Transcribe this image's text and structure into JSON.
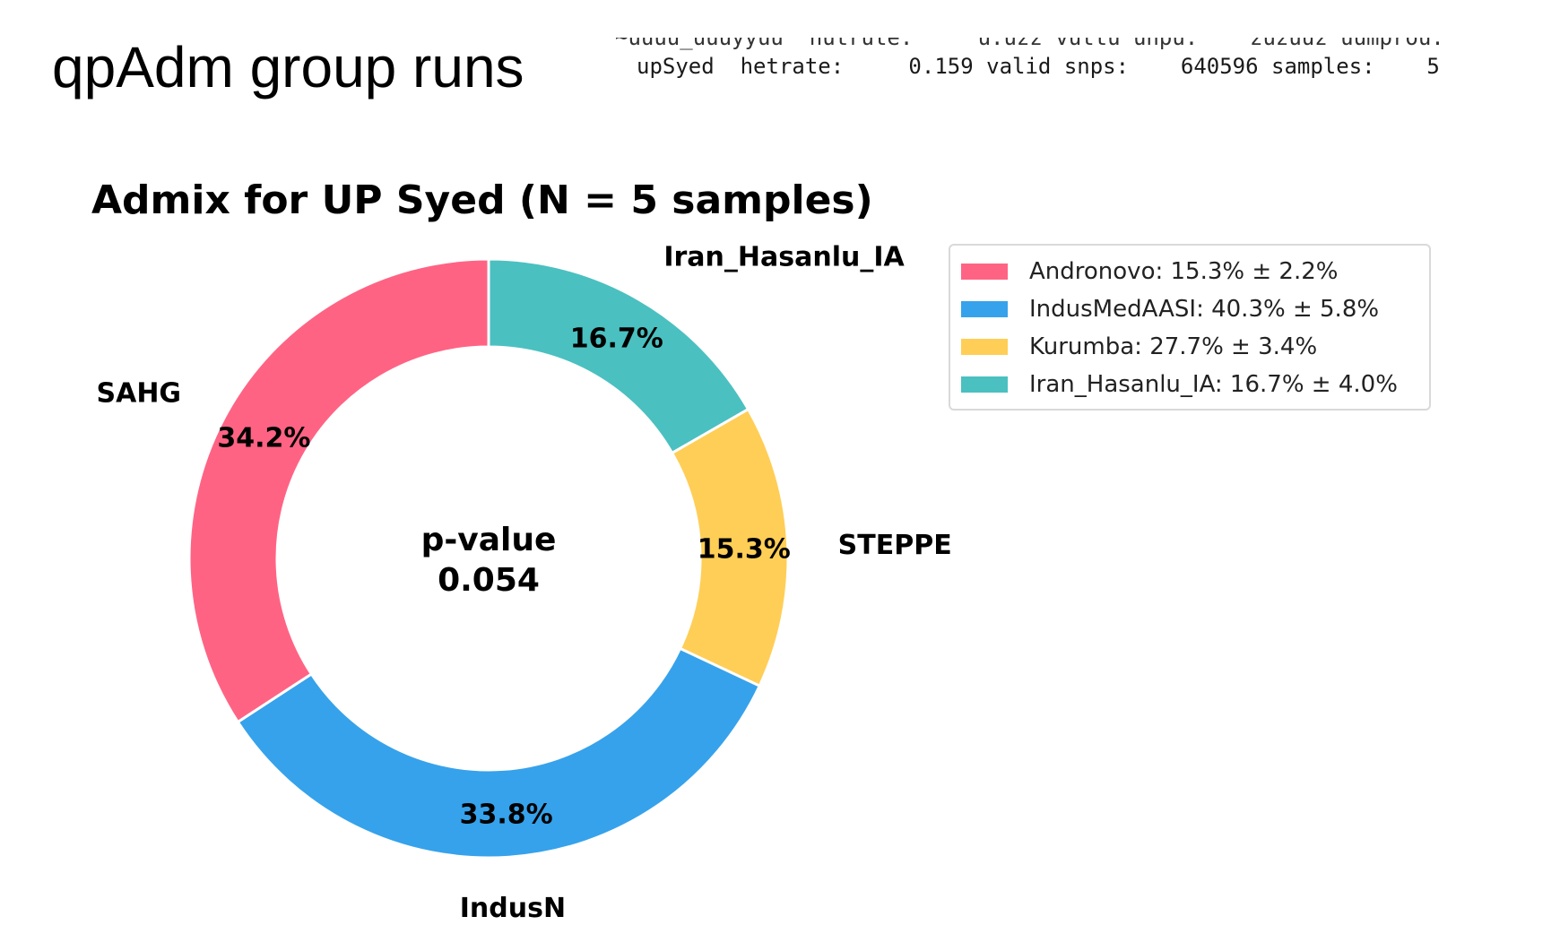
{
  "slide": {
    "title": "qpAdm group runs"
  },
  "terminal": {
    "line_above": "~uuuu_uuuyyuu  nutrute:     u.uzz vuttu unpu.    zuzuuz uumprou.",
    "line": "upSyed  hetrate:     0.159 valid snps:    640596 samples:    5",
    "line_below": "..."
  },
  "colors": {
    "SAHG": "#ff6384",
    "IndusN": "#36a2eb",
    "STEPPE": "#ffce56",
    "Iran_Hasanlu_IA": "#4bc0c0"
  },
  "chart_data": {
    "type": "pie",
    "variant": "donut",
    "title": "Admix for UP Syed (N = 5 samples)",
    "center_text": [
      "p-value",
      "0.054"
    ],
    "slices": [
      {
        "label": "Iran_Hasanlu_IA",
        "value": 16.7,
        "pct_label": "16.7%",
        "color": "#4bc0c0"
      },
      {
        "label": "STEPPE",
        "value": 15.3,
        "pct_label": "15.3%",
        "color": "#ffce56"
      },
      {
        "label": "IndusN",
        "value": 33.8,
        "pct_label": "33.8%",
        "color": "#36a2eb"
      },
      {
        "label": "SAHG",
        "value": 34.2,
        "pct_label": "34.2%",
        "color": "#ff6384"
      }
    ],
    "start_angle_deg": 90,
    "direction": "clockwise",
    "legend": {
      "placement": "top-right",
      "entries": [
        {
          "label": "Andronovo: 15.3% ± 2.2%",
          "color": "#ff6384"
        },
        {
          "label": "IndusMedAASI: 40.3% ± 5.8%",
          "color": "#36a2eb"
        },
        {
          "label": "Kurumba: 27.7% ± 3.4%",
          "color": "#ffce56"
        },
        {
          "label": "Iran_Hasanlu_IA: 16.7% ± 4.0%",
          "color": "#4bc0c0"
        }
      ]
    }
  }
}
